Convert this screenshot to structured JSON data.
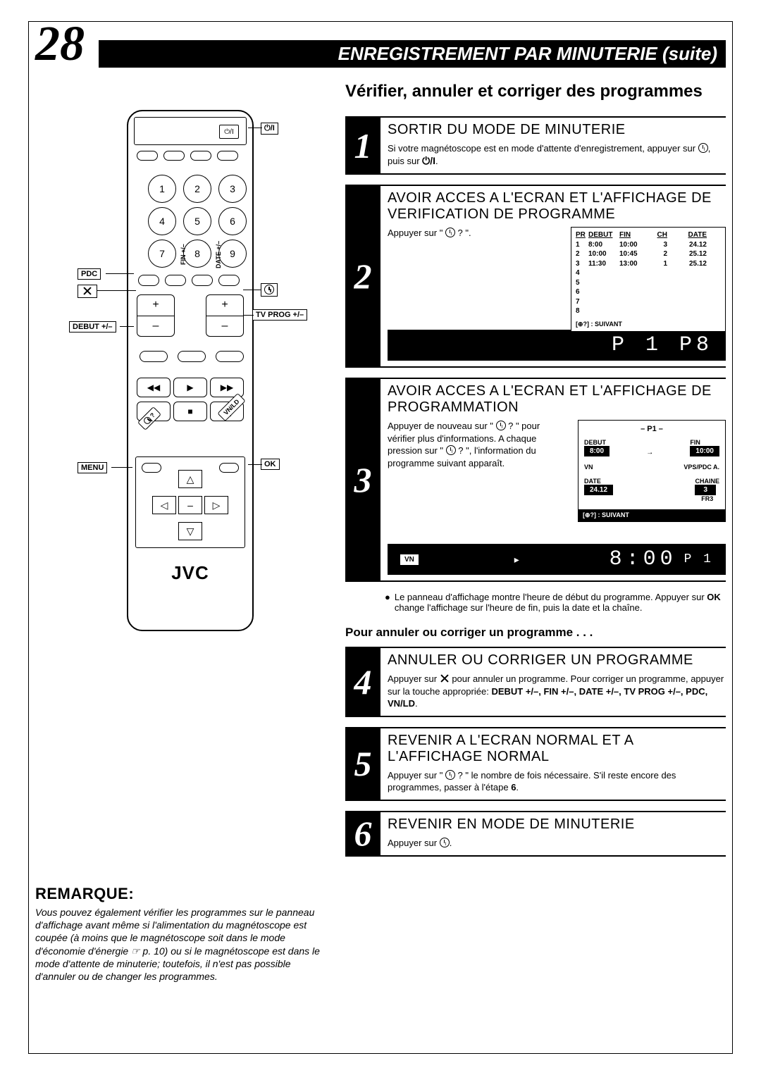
{
  "page_number": "28",
  "header_title": "ENREGISTREMENT PAR MINUTERIE (suite)",
  "section_heading": "Vérifier, annuler et corriger des programmes",
  "steps": [
    {
      "num": "1",
      "title": "SORTIR DU MODE DE MINUTERIE",
      "text_a": "Si votre magnétoscope est en mode d'attente d'enregistrement, appuyer sur ",
      "text_b": ", puis sur ",
      "text_c": "."
    },
    {
      "num": "2",
      "title": "AVOIR ACCES A L'ECRAN ET L'AFFICHAGE DE VERIFICATION DE PROGRAMME",
      "text_a": "Appuyer sur \" ",
      "text_b": " ? \"."
    },
    {
      "num": "3",
      "title": "AVOIR ACCES A L'ECRAN ET L'AFFICHAGE DE PROGRAMMATION",
      "text_a": "Appuyer de nouveau sur \" ",
      "text_b": " ? \" pour vérifier plus d'informations. A chaque pression sur \" ",
      "text_c": " ? \", l'information du programme suivant apparaît."
    },
    {
      "num": "4",
      "title": "ANNULER OU CORRIGER UN PROGRAMME",
      "text_a": "Appuyer sur ",
      "text_b": " pour annuler un programme. Pour corriger un programme, appuyer sur la touche appropriée: ",
      "keys": "DEBUT +/–, FIN +/–, DATE +/–, TV PROG +/–, PDC, VN/LD",
      "text_c": "."
    },
    {
      "num": "5",
      "title": "REVENIR A L'ECRAN NORMAL ET A L'AFFICHAGE NORMAL",
      "text_a": "Appuyer sur \" ",
      "text_b": " ? \" le nombre de fois nécessaire. S'il reste encore des programmes, passer à l'étape ",
      "step_ref": "6",
      "text_c": "."
    },
    {
      "num": "6",
      "title": "REVENIR EN MODE DE MINUTERIE",
      "text_a": "Appuyer sur ",
      "text_b": "."
    }
  ],
  "sub_heading": "Pour annuler ou corriger un programme . . .",
  "step3_note": "Le panneau d'affichage montre l'heure de début du programme. Appuyer sur OK change l'affichage sur l'heure de fin, puis la date et la chaîne.",
  "step3_note_ok": "OK",
  "sched_table": {
    "headers": [
      "PR",
      "DEBUT",
      "FIN",
      "CH",
      "DATE"
    ],
    "rows": [
      [
        "1",
        "8:00",
        "10:00",
        "3",
        "24.12"
      ],
      [
        "2",
        "10:00",
        "10:45",
        "2",
        "25.12"
      ],
      [
        "3",
        "11:30",
        "13:00",
        "1",
        "25.12"
      ],
      [
        "4",
        "",
        "",
        "",
        ""
      ],
      [
        "5",
        "",
        "",
        "",
        ""
      ],
      [
        "6",
        "",
        "",
        "",
        ""
      ],
      [
        "7",
        "",
        "",
        "",
        ""
      ],
      [
        "8",
        "",
        "",
        "",
        ""
      ]
    ],
    "footer": "[⊕?] : SUIVANT"
  },
  "lcd1": "P 1 P8",
  "lcd2_badge": "VN",
  "lcd2_arrow": "▸",
  "lcd2_main": "8:00",
  "lcd2_sub": "P 1",
  "prog_detail": {
    "head": "– P1 –",
    "debut_label": "DEBUT",
    "debut_val": "8:00",
    "fin_label": "FIN",
    "fin_val": "10:00",
    "arrow": "→",
    "vn": "VN",
    "vps": "VPS/PDC A.",
    "date_label": "DATE",
    "date_val": "24.12",
    "chaine_label": "CHAINE",
    "chaine_val": "3",
    "fr3": "FR3",
    "footer": "[⊕?] : SUIVANT"
  },
  "remote": {
    "brand": "JVC",
    "power": "⏻/I",
    "numbers": [
      "1",
      "2",
      "3",
      "4",
      "5",
      "6",
      "7",
      "8",
      "9"
    ],
    "pm_plus": "+",
    "pm_minus": "–",
    "callouts": {
      "power": "⏻/I",
      "pdc": "PDC",
      "cancel": "✕",
      "debut": "DEBUT +/–",
      "tvprog": "TV PROG +/–",
      "menu": "MENU",
      "ok": "OK",
      "fin": "FIN +/–",
      "date": "DATE +/–",
      "clockq": "⊕ ?",
      "vnld": "VN/LD"
    },
    "transport": {
      "rew": "◀◀",
      "play": "▶",
      "ff": "▶▶",
      "rec": "●",
      "stop": "■",
      "pause": "❙❙"
    },
    "dpad": {
      "up": "△",
      "down": "▽",
      "left": "◁",
      "right": "▷"
    }
  },
  "note": {
    "heading": "REMARQUE:",
    "text": "Vous pouvez également vérifier les programmes sur le panneau d'affichage avant même si l'alimentation du magnétoscope est coupée (à moins que le magnétoscope soit dans le mode d'économie d'énergie ☞ p. 10) ou si le magnétoscope est dans le mode d'attente de minuterie; toutefois, il n'est pas possible d'annuler ou de changer les programmes."
  },
  "colors": {
    "black": "#000000",
    "white": "#ffffff"
  }
}
